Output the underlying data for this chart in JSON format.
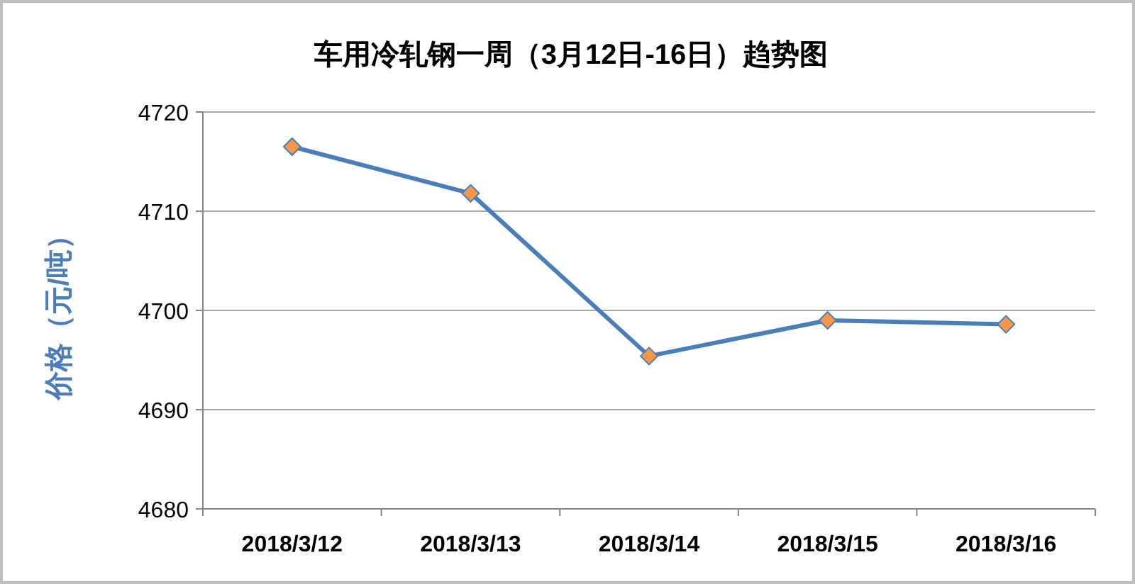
{
  "chart_data": {
    "type": "line",
    "title": "车用冷轧钢一周（3月12日-16日）趋势图",
    "ylabel": "价格（元/吨）",
    "categories": [
      "2018/3/12",
      "2018/3/13",
      "2018/3/14",
      "2018/3/15",
      "2018/3/16"
    ],
    "series": [
      {
        "color": "#4a7ebb",
        "colors": [
          "#f79646",
          "#f79646",
          "#f79646",
          "#f79646",
          "#f79646"
        ],
        "values": [
          4716.5,
          4711.8,
          4695.4,
          4699.0,
          4698.6
        ]
      }
    ],
    "ylim": [
      4680,
      4720
    ],
    "yticks": [
      4680,
      4690,
      4700,
      4710,
      4720
    ],
    "grid": "y",
    "marker": "diamond",
    "line_style": "solid"
  }
}
